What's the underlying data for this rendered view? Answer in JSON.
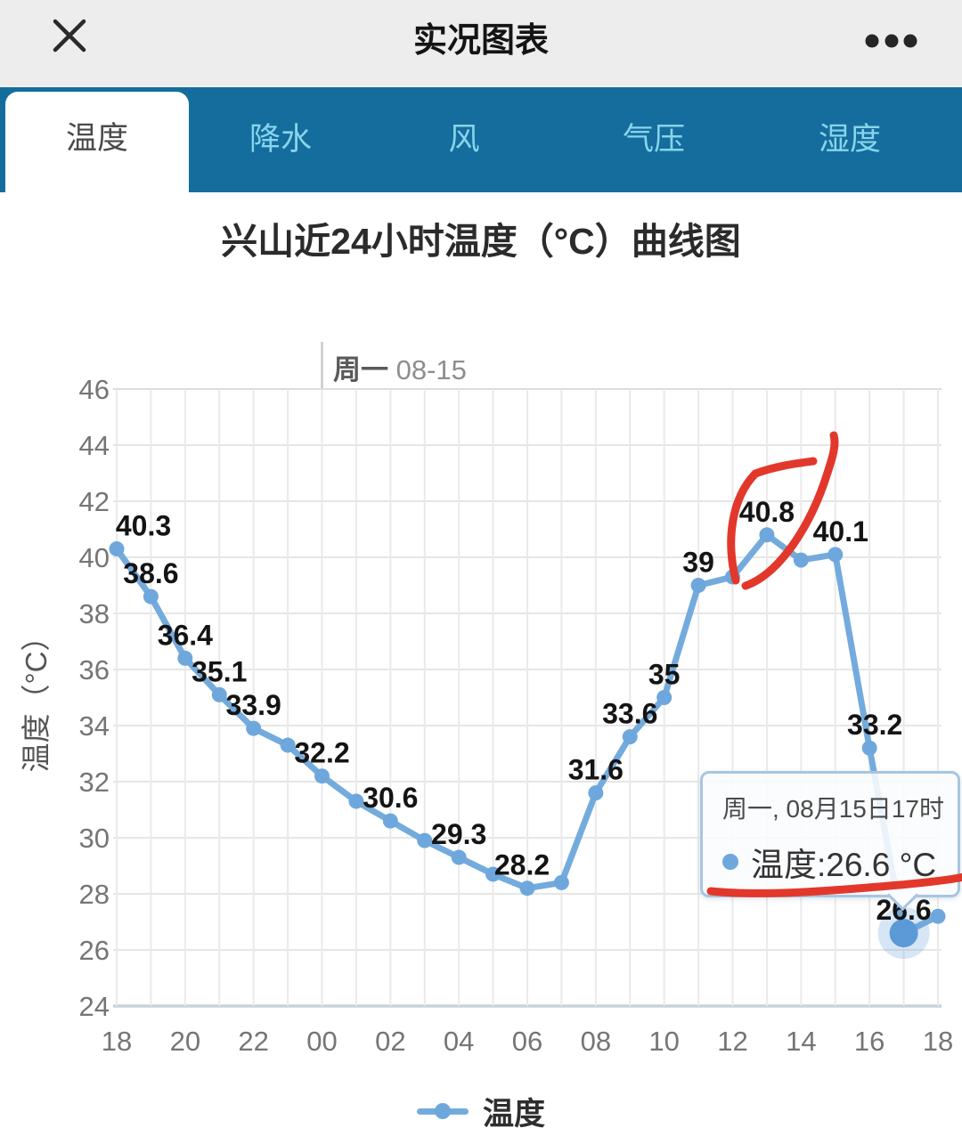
{
  "header": {
    "title": "实况图表"
  },
  "tabs": [
    {
      "label": "温度",
      "active": true
    },
    {
      "label": "降水",
      "active": false
    },
    {
      "label": "风",
      "active": false
    },
    {
      "label": "气压",
      "active": false
    },
    {
      "label": "湿度",
      "active": false
    }
  ],
  "chart": {
    "title": "兴山近24小时温度（°C）曲线图",
    "day_label": {
      "weekday": "周一",
      "date": "08-15"
    },
    "y_axis_title": "温度（°C）",
    "legend_label": "温度",
    "tooltip": {
      "date": "周一, 08月15日17时",
      "text": "温度:26.6 °C"
    },
    "colors": {
      "series": "#74abdd",
      "marker": "#6ea7dc",
      "selected_marker": "#5b9ad6",
      "halo": "rgba(110,167,220,0.28)",
      "annotation_red": "#e2382b",
      "tabbar": "#156d9e",
      "tab_inactive_text": "#87d5ea",
      "grid": "#e6e6e6",
      "axis_line": "#c6d3db",
      "tick_text": "#757575",
      "data_label_text": "#141414"
    }
  },
  "chart_data": {
    "type": "line",
    "x_hours": [
      "18",
      "19",
      "20",
      "21",
      "22",
      "23",
      "00",
      "01",
      "02",
      "03",
      "04",
      "05",
      "06",
      "07",
      "08",
      "09",
      "10",
      "11",
      "12",
      "13",
      "14",
      "15",
      "16",
      "17",
      "18"
    ],
    "x_ticks": [
      "18",
      "20",
      "22",
      "00",
      "02",
      "04",
      "06",
      "08",
      "10",
      "12",
      "14",
      "16",
      "18"
    ],
    "series": [
      {
        "name": "温度",
        "values": [
          40.3,
          38.6,
          36.4,
          35.1,
          33.9,
          33.3,
          32.2,
          31.3,
          30.6,
          29.9,
          29.3,
          28.7,
          28.2,
          28.4,
          31.6,
          33.6,
          35,
          39,
          39.3,
          40.8,
          39.9,
          40.1,
          33.2,
          26.6,
          27.2
        ],
        "point_labels": [
          "40.3",
          "38.6",
          "36.4",
          "35.1",
          "33.9",
          null,
          "32.2",
          null,
          "30.6",
          null,
          "29.3",
          null,
          "28.2",
          null,
          "31.6",
          "33.6",
          "35",
          "39",
          null,
          "40.8",
          null,
          "40.1",
          "33.2",
          "26.6",
          null
        ]
      }
    ],
    "selected_point_index": 23,
    "ylabel": "温度（°C）",
    "ylim": [
      24,
      46
    ],
    "ytick_step": 2,
    "y_ticks": [
      46,
      44,
      42,
      40,
      38,
      36,
      34,
      32,
      30,
      28,
      26,
      24
    ],
    "grid": true,
    "legend_position": "bottom",
    "annotations": {
      "color": "#e2382b",
      "shapes": [
        "hand-drawn circle around 40.8 peak",
        "hand-drawn underline below tooltip bottom-right"
      ]
    }
  }
}
